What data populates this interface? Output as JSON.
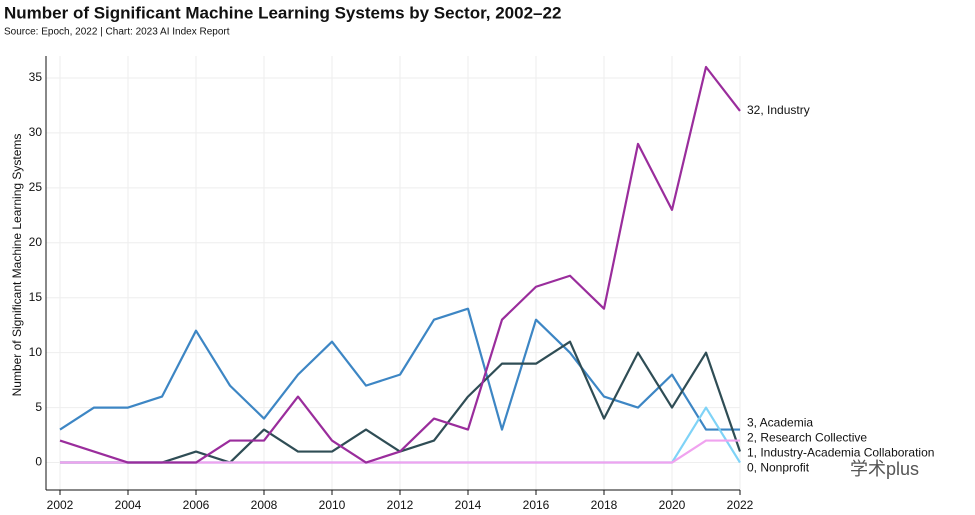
{
  "chart_data": {
    "type": "line",
    "title": "Number of Significant Machine Learning Systems by Sector, 2002–22",
    "subtitle": "Source: Epoch, 2022 | Chart: 2023 AI Index Report",
    "y_label": "Number of Significant Machine Learning Systems",
    "x": [
      2002,
      2003,
      2004,
      2005,
      2006,
      2007,
      2008,
      2009,
      2010,
      2011,
      2012,
      2013,
      2014,
      2015,
      2016,
      2017,
      2018,
      2019,
      2020,
      2021,
      2022
    ],
    "xlim": [
      2002,
      2022
    ],
    "xticks": [
      2002,
      2004,
      2006,
      2008,
      2010,
      2012,
      2014,
      2016,
      2018,
      2020,
      2022
    ],
    "ylim": [
      -2.5,
      37
    ],
    "yticks": [
      0,
      5,
      10,
      15,
      20,
      25,
      30,
      35
    ],
    "grid": true,
    "series": [
      {
        "color": "#3d86c4",
        "values": [
          3,
          5,
          5,
          6,
          12,
          7,
          4,
          8,
          11,
          7,
          8,
          13,
          14,
          3,
          13,
          10,
          6,
          5,
          8,
          3,
          3
        ],
        "value_labels": [
          null,
          null,
          null,
          null,
          null,
          null,
          null,
          null,
          null,
          null,
          null,
          null,
          null,
          null,
          null,
          null,
          null,
          null,
          null,
          null,
          "3, Academia"
        ]
      },
      {
        "color": "#2f4d55",
        "values": [
          0,
          0,
          0,
          0,
          1,
          0,
          3,
          1,
          1,
          3,
          1,
          2,
          6,
          9,
          9,
          11,
          4,
          10,
          5,
          10,
          1
        ],
        "value_labels": [
          null,
          null,
          null,
          null,
          null,
          null,
          null,
          null,
          null,
          null,
          null,
          null,
          null,
          null,
          null,
          null,
          null,
          null,
          null,
          null,
          "1, Industry-Academia Collaboration"
        ]
      },
      {
        "color": "#7fd3f7",
        "values": [
          0,
          0,
          0,
          0,
          0,
          0,
          0,
          0,
          0,
          0,
          0,
          0,
          0,
          0,
          0,
          0,
          0,
          0,
          0,
          5,
          0
        ],
        "value_labels": [
          null,
          null,
          null,
          null,
          null,
          null,
          null,
          null,
          null,
          null,
          null,
          null,
          null,
          null,
          null,
          null,
          null,
          null,
          null,
          null,
          "0, Nonprofit"
        ]
      },
      {
        "color": "#f0a3ef",
        "values": [
          0,
          0,
          0,
          0,
          0,
          0,
          0,
          0,
          0,
          0,
          0,
          0,
          0,
          0,
          0,
          0,
          0,
          0,
          0,
          2,
          2
        ],
        "value_labels": [
          null,
          null,
          null,
          null,
          null,
          null,
          null,
          null,
          null,
          null,
          null,
          null,
          null,
          null,
          null,
          null,
          null,
          null,
          null,
          null,
          "2, Research Collective"
        ]
      },
      {
        "color": "#9a2d9c",
        "values": [
          2,
          1,
          0,
          0,
          0,
          2,
          2,
          6,
          2,
          0,
          1,
          4,
          3,
          13,
          16,
          17,
          14,
          29,
          23,
          36,
          32
        ],
        "value_labels": [
          null,
          null,
          null,
          null,
          null,
          null,
          null,
          null,
          null,
          null,
          null,
          null,
          null,
          null,
          null,
          null,
          null,
          null,
          null,
          null,
          "32, Industry"
        ]
      }
    ],
    "watermark": "学术plus"
  }
}
